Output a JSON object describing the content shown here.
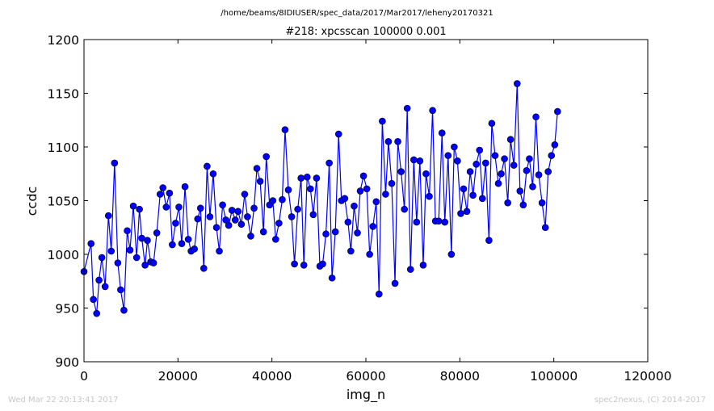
{
  "chart_data": {
    "type": "line",
    "suptitle": "/home/beams/8IDIUSER/spec_data/2017/Mar2017/leheny20170321",
    "title": "#218: xpcsscan 100000 0.001",
    "xlabel": "img_n",
    "ylabel": "ccdc",
    "xlim": [
      0,
      120000
    ],
    "ylim": [
      900,
      1200
    ],
    "xticks": [
      "0",
      "20000",
      "40000",
      "60000",
      "80000",
      "100000",
      "120000"
    ],
    "yticks": [
      "900",
      "950",
      "1000",
      "1050",
      "1100",
      "1150",
      "1200"
    ],
    "grid": false,
    "legend": "none",
    "series_color": "#0000ff",
    "marker": "circle",
    "x": [
      0,
      1000,
      2000,
      3000,
      4000,
      5000,
      6000,
      7000,
      8000,
      9000,
      10000,
      11000,
      12000,
      13000,
      14000,
      15000,
      16000,
      17000,
      18000,
      19000,
      20000,
      21000,
      22000,
      23000,
      24000,
      25000,
      26000,
      27000,
      28000,
      29000,
      30000,
      31000,
      32000,
      33000,
      34000,
      35000,
      36000,
      37000,
      38000,
      39000,
      40000,
      41000,
      42000,
      43000,
      44000,
      45000,
      46000,
      47000,
      48000,
      49000,
      50000,
      51000,
      52000,
      53000,
      54000,
      55000,
      56000,
      57000,
      58000,
      59000,
      60000,
      61000,
      62000,
      63000,
      64000,
      65000,
      66000,
      67000,
      68000,
      69000,
      70000,
      71000,
      72000,
      73000,
      74000,
      75000,
      76000,
      77000,
      78000,
      79000,
      80000,
      81000,
      82000,
      83000,
      84000,
      85000,
      86000,
      87000,
      88000,
      89000,
      90000,
      91000,
      92000,
      93000,
      94000,
      95000,
      96000,
      97000,
      98000,
      99000,
      100000,
      500,
      2500,
      3500,
      4500,
      5500,
      6500,
      7500,
      8500,
      9500,
      10500,
      11500,
      12500,
      13500,
      14500,
      15500,
      16500,
      17500,
      18500,
      19500,
      20500,
      21500,
      22500,
      23500,
      24500,
      25500,
      26500,
      27500,
      28500,
      29500,
      30500,
      31500,
      32500,
      33500,
      34500,
      35500,
      36500,
      37500,
      38500,
      39500,
      40500,
      41500,
      42500,
      43500,
      44500,
      45500,
      46500,
      47500,
      48500,
      49500,
      50500,
      51500,
      52500,
      53500,
      54500,
      55500,
      56500,
      57500,
      58500,
      59500,
      60500,
      61500,
      62500,
      63500,
      64500,
      65500,
      66500,
      67500,
      68500,
      69500,
      70500,
      71500,
      72500,
      73500,
      74500,
      75500,
      76500,
      77500,
      78500,
      79500,
      80500,
      81500,
      82500,
      83500,
      84500,
      85500,
      86500,
      87500,
      88500,
      89500,
      90500,
      91500,
      92500,
      93500,
      94500,
      95500,
      96500,
      97500,
      98500,
      99500
    ],
    "series": [
      {
        "points": [
          [
            0,
            984
          ],
          [
            1500,
            1010
          ],
          [
            2000,
            958
          ],
          [
            2700,
            945
          ],
          [
            3200,
            976
          ],
          [
            3800,
            997
          ],
          [
            4500,
            970
          ],
          [
            5200,
            1036
          ],
          [
            5800,
            1003
          ],
          [
            6500,
            1085
          ],
          [
            7200,
            992
          ],
          [
            7800,
            967
          ],
          [
            8500,
            948
          ],
          [
            9200,
            1022
          ],
          [
            9800,
            1004
          ],
          [
            10500,
            1045
          ],
          [
            11200,
            997
          ],
          [
            11800,
            1042
          ],
          [
            12300,
            1015
          ],
          [
            13000,
            990
          ],
          [
            13500,
            1013
          ],
          [
            14200,
            993
          ],
          [
            14800,
            992
          ],
          [
            15500,
            1020
          ],
          [
            16200,
            1056
          ],
          [
            16800,
            1062
          ],
          [
            17500,
            1044
          ],
          [
            18200,
            1057
          ],
          [
            18800,
            1009
          ],
          [
            19500,
            1029
          ],
          [
            20200,
            1044
          ],
          [
            20800,
            1010
          ],
          [
            21500,
            1063
          ],
          [
            22200,
            1014
          ],
          [
            22800,
            1003
          ],
          [
            23500,
            1005
          ],
          [
            24200,
            1033
          ],
          [
            24800,
            1043
          ],
          [
            25500,
            987
          ],
          [
            26200,
            1082
          ],
          [
            26800,
            1035
          ],
          [
            27500,
            1075
          ],
          [
            28200,
            1025
          ],
          [
            28800,
            1003
          ],
          [
            29500,
            1046
          ],
          [
            30200,
            1032
          ],
          [
            30800,
            1027
          ],
          [
            31500,
            1041
          ],
          [
            32200,
            1032
          ],
          [
            32800,
            1040
          ],
          [
            33500,
            1028
          ],
          [
            34200,
            1056
          ],
          [
            34800,
            1035
          ],
          [
            35500,
            1017
          ],
          [
            36200,
            1043
          ],
          [
            36800,
            1080
          ],
          [
            37500,
            1068
          ],
          [
            38200,
            1021
          ],
          [
            38800,
            1091
          ],
          [
            39500,
            1046
          ],
          [
            40200,
            1050
          ],
          [
            40800,
            1014
          ],
          [
            41500,
            1029
          ],
          [
            42200,
            1051
          ],
          [
            42800,
            1116
          ],
          [
            43500,
            1060
          ],
          [
            44200,
            1035
          ],
          [
            44800,
            991
          ],
          [
            45500,
            1042
          ],
          [
            46200,
            1071
          ],
          [
            46800,
            990
          ],
          [
            47500,
            1072
          ],
          [
            48200,
            1061
          ],
          [
            48800,
            1037
          ],
          [
            49500,
            1071
          ],
          [
            50200,
            989
          ],
          [
            50800,
            991
          ],
          [
            51500,
            1019
          ],
          [
            52200,
            1085
          ],
          [
            52800,
            978
          ],
          [
            53500,
            1021
          ],
          [
            54200,
            1112
          ],
          [
            54800,
            1050
          ],
          [
            55500,
            1052
          ],
          [
            56200,
            1030
          ],
          [
            56800,
            1003
          ],
          [
            57500,
            1045
          ],
          [
            58200,
            1020
          ],
          [
            58800,
            1059
          ],
          [
            59500,
            1073
          ],
          [
            60200,
            1061
          ],
          [
            60800,
            1000
          ],
          [
            61500,
            1026
          ],
          [
            62200,
            1049
          ],
          [
            62800,
            963
          ],
          [
            63500,
            1124
          ],
          [
            64200,
            1056
          ],
          [
            64800,
            1105
          ],
          [
            65500,
            1066
          ],
          [
            66200,
            973
          ],
          [
            66800,
            1105
          ],
          [
            67500,
            1077
          ],
          [
            68200,
            1042
          ],
          [
            68800,
            1136
          ],
          [
            69500,
            986
          ],
          [
            70200,
            1088
          ],
          [
            70800,
            1030
          ],
          [
            71500,
            1087
          ],
          [
            72200,
            990
          ],
          [
            72800,
            1075
          ],
          [
            73500,
            1054
          ],
          [
            74200,
            1134
          ],
          [
            74800,
            1031
          ],
          [
            75500,
            1031
          ],
          [
            76200,
            1113
          ],
          [
            76800,
            1030
          ],
          [
            77500,
            1092
          ],
          [
            78200,
            1000
          ],
          [
            78800,
            1100
          ],
          [
            79500,
            1087
          ],
          [
            80200,
            1038
          ],
          [
            80800,
            1061
          ],
          [
            81500,
            1040
          ],
          [
            82200,
            1077
          ],
          [
            82800,
            1055
          ],
          [
            83500,
            1084
          ],
          [
            84200,
            1097
          ],
          [
            84800,
            1052
          ],
          [
            85500,
            1085
          ],
          [
            86200,
            1013
          ],
          [
            86800,
            1122
          ],
          [
            87500,
            1092
          ],
          [
            88200,
            1066
          ],
          [
            88800,
            1075
          ],
          [
            89500,
            1089
          ],
          [
            90200,
            1048
          ],
          [
            90800,
            1107
          ],
          [
            91500,
            1083
          ],
          [
            92200,
            1159
          ],
          [
            92800,
            1059
          ],
          [
            93500,
            1046
          ],
          [
            94200,
            1078
          ],
          [
            94800,
            1089
          ],
          [
            95500,
            1063
          ],
          [
            96200,
            1128
          ],
          [
            96800,
            1074
          ],
          [
            97500,
            1048
          ],
          [
            98200,
            1025
          ],
          [
            98800,
            1077
          ],
          [
            99500,
            1092
          ],
          [
            100200,
            1102
          ],
          [
            100800,
            1133
          ]
        ]
      }
    ]
  },
  "footer": {
    "timestamp": "Wed Mar 22 20:13:41 2017",
    "credit": "spec2nexus, (C) 2014-2017"
  }
}
